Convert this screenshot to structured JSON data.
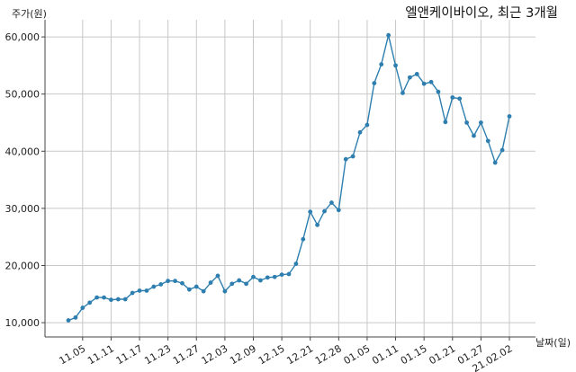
{
  "chart_data": {
    "type": "line",
    "title": "엘앤케이바이오, 최근 3개월",
    "ylabel": "주가(원)",
    "xlabel": "날짜(일)",
    "ylim": [
      7500,
      63000
    ],
    "yticks": [
      10000,
      20000,
      30000,
      40000,
      50000,
      60000
    ],
    "ytick_labels": [
      "10,000",
      "20,000",
      "30,000",
      "40,000",
      "50,000",
      "60,000"
    ],
    "grid": true,
    "color": "#2e7fb0",
    "x_tick_labels": [
      {
        "label": "11.05",
        "i": 2
      },
      {
        "label": "11.11",
        "i": 6
      },
      {
        "label": "11.17",
        "i": 10
      },
      {
        "label": "11.23",
        "i": 14
      },
      {
        "label": "11.27",
        "i": 18
      },
      {
        "label": "12.03",
        "i": 22
      },
      {
        "label": "12.09",
        "i": 26
      },
      {
        "label": "12.15",
        "i": 30
      },
      {
        "label": "12.21",
        "i": 34
      },
      {
        "label": "12.28",
        "i": 38
      },
      {
        "label": "01.05",
        "i": 42
      },
      {
        "label": "01.11",
        "i": 46
      },
      {
        "label": "01.15",
        "i": 50
      },
      {
        "label": "01.21",
        "i": 54
      },
      {
        "label": "01.27",
        "i": 58
      },
      {
        "label": "21.02.02",
        "i": 62
      }
    ],
    "values": [
      10400,
      10900,
      12600,
      13500,
      14400,
      14400,
      14000,
      14100,
      14100,
      15200,
      15600,
      15600,
      16300,
      16700,
      17300,
      17300,
      16900,
      15800,
      16300,
      15500,
      17000,
      18200,
      15500,
      16800,
      17400,
      16800,
      18000,
      17400,
      17900,
      18000,
      18400,
      18500,
      20300,
      24600,
      29400,
      27100,
      29500,
      31000,
      29700,
      38600,
      39100,
      43300,
      44600,
      51900,
      55200,
      60300,
      55000,
      50200,
      52900,
      53500,
      51800,
      52100,
      50400,
      45100,
      49400,
      49200,
      45000,
      42700,
      45000,
      41800,
      38000,
      40200,
      46100
    ]
  }
}
